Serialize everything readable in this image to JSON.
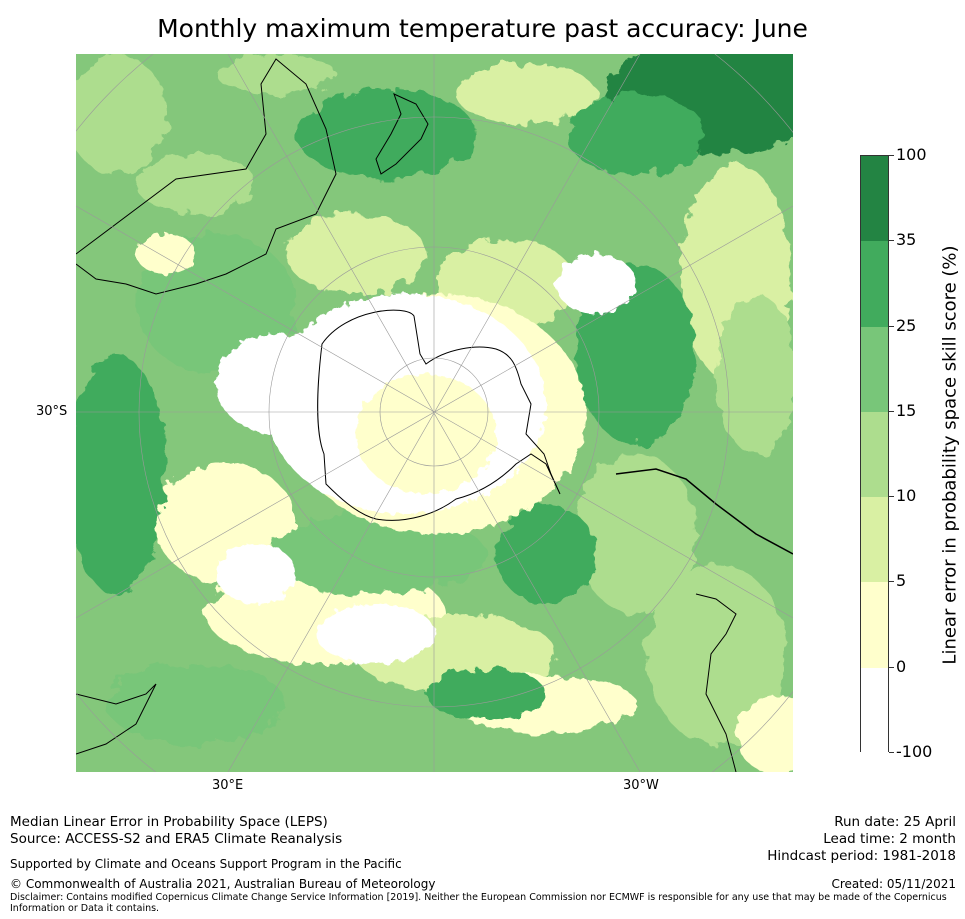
{
  "title": "Monthly maximum temperature past accuracy: June",
  "map": {
    "lat_labels": [
      "30°S"
    ],
    "lon_labels": [
      "30°E",
      "30°W"
    ],
    "colors": {
      "white": "#ffffff",
      "pale_yellow": "#ffffcc",
      "yellow_green": "#d9f0a3",
      "light_green": "#addd8e",
      "mid_green": "#78c679",
      "green": "#41ab5d",
      "dark_green": "#238443",
      "coast": "#000000",
      "grid": "#9a9a9a"
    }
  },
  "colorbar": {
    "label": "Linear error in probability space skill score (%)",
    "ticks": [
      "100",
      "35",
      "25",
      "15",
      "10",
      "5",
      "0",
      "-100"
    ],
    "colors_top_to_bottom": [
      "#238443",
      "#41ab5d",
      "#78c679",
      "#addd8e",
      "#d9f0a3",
      "#ffffcc",
      "#ffffff"
    ]
  },
  "footer": {
    "left_line1": "Median Linear Error in Probability Space (LEPS)",
    "left_line2": "Source: ACCESS-S2 and ERA5 Climate Reanalysis",
    "support": "Supported by Climate and Oceans Support Program in the Pacific",
    "copyright": "© Commonwealth of Australia 2021, Australian Bureau of Meteorology",
    "disclaimer": "Disclaimer: Contains modified Copernicus Climate Change Service Information [2019]. Neither the European Commission nor ECMWF is responsible for any use that may be made of the Copernicus Information or Data it contains.",
    "run_date": "Run date: 25 April",
    "lead_time": "Lead time: 2 month",
    "hindcast": "Hindcast period: 1981-2018",
    "created": "Created: 05/11/2021"
  }
}
